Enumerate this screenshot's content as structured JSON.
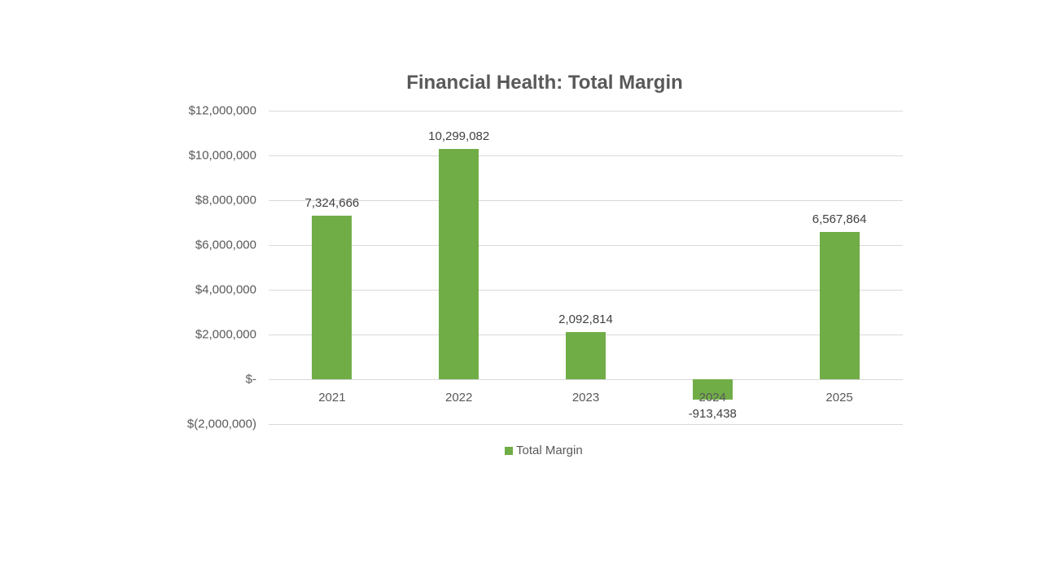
{
  "chart_data": {
    "type": "bar",
    "title": "Financial Health: Total Margin",
    "xlabel": "",
    "ylabel": "",
    "categories": [
      "2021",
      "2022",
      "2023",
      "2024",
      "2025"
    ],
    "series": [
      {
        "name": "Total Margin",
        "color": "#70ad47",
        "values": [
          7324666,
          10299082,
          2092814,
          -913438,
          6567864
        ],
        "data_labels": [
          "7,324,666",
          "10,299,082",
          "2,092,814",
          "-913,438",
          "6,567,864"
        ]
      }
    ],
    "ylim": [
      -2000000,
      12000000
    ],
    "yticks": [
      12000000,
      10000000,
      8000000,
      6000000,
      4000000,
      2000000,
      0,
      -2000000
    ],
    "ytick_labels": [
      "$12,000,000",
      "$10,000,000",
      "$8,000,000",
      "$6,000,000",
      "$4,000,000",
      "$2,000,000",
      "$-",
      "$(2,000,000)"
    ],
    "grid": true,
    "legend_position": "bottom"
  },
  "legend": {
    "label": "Total Margin"
  }
}
